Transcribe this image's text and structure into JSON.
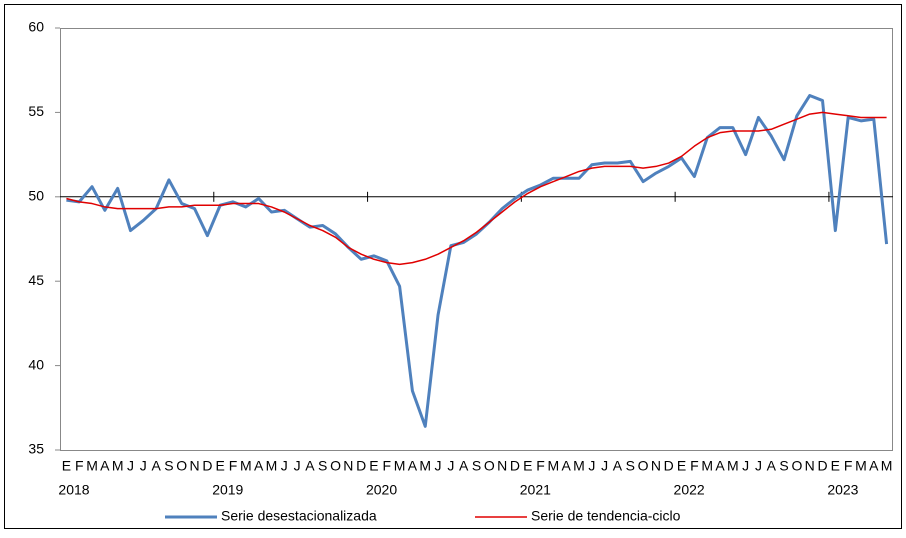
{
  "chart_data": {
    "type": "line",
    "categories": [
      "E",
      "F",
      "M",
      "A",
      "M",
      "J",
      "J",
      "A",
      "S",
      "O",
      "N",
      "D",
      "E",
      "F",
      "M",
      "A",
      "M",
      "J",
      "J",
      "A",
      "S",
      "O",
      "N",
      "D",
      "E",
      "F",
      "M",
      "A",
      "M",
      "J",
      "J",
      "A",
      "S",
      "O",
      "N",
      "D",
      "E",
      "F",
      "M",
      "A",
      "M",
      "J",
      "J",
      "A",
      "S",
      "O",
      "N",
      "D",
      "E",
      "F",
      "M",
      "A",
      "M",
      "J",
      "J",
      "A",
      "S",
      "O",
      "N",
      "D",
      "E",
      "F",
      "M",
      "A",
      "M"
    ],
    "years": [
      "2018",
      "2019",
      "2020",
      "2021",
      "2022",
      "2023"
    ],
    "series": [
      {
        "name": "Serie desestacionalizada",
        "color": "#4f81bd",
        "width": 3,
        "values": [
          49.8,
          49.7,
          50.6,
          49.2,
          50.5,
          48.0,
          48.6,
          49.3,
          51.0,
          49.6,
          49.3,
          47.7,
          49.5,
          49.7,
          49.4,
          49.9,
          49.1,
          49.2,
          48.7,
          48.2,
          48.3,
          47.8,
          47.0,
          46.3,
          46.5,
          46.2,
          44.7,
          38.5,
          36.4,
          43.0,
          47.1,
          47.3,
          47.8,
          48.5,
          49.3,
          49.9,
          50.4,
          50.7,
          51.1,
          51.1,
          51.1,
          51.9,
          52.0,
          52.0,
          52.1,
          50.9,
          51.4,
          51.8,
          52.3,
          51.2,
          53.5,
          54.1,
          54.1,
          52.5,
          54.7,
          53.6,
          52.2,
          54.8,
          56.0,
          55.7,
          48.0,
          54.7,
          54.5,
          54.6,
          47.2
        ]
      },
      {
        "name": "Serie de tendencia-ciclo",
        "color": "#e00000",
        "width": 1.5,
        "values": [
          49.9,
          49.7,
          49.6,
          49.4,
          49.3,
          49.3,
          49.3,
          49.3,
          49.4,
          49.4,
          49.5,
          49.5,
          49.5,
          49.6,
          49.6,
          49.6,
          49.4,
          49.1,
          48.7,
          48.3,
          48.0,
          47.6,
          47.0,
          46.6,
          46.3,
          46.1,
          46.0,
          46.1,
          46.3,
          46.6,
          47.0,
          47.4,
          47.9,
          48.5,
          49.1,
          49.7,
          50.2,
          50.6,
          50.9,
          51.2,
          51.5,
          51.7,
          51.8,
          51.8,
          51.8,
          51.7,
          51.8,
          52.0,
          52.4,
          53.0,
          53.5,
          53.8,
          53.9,
          53.9,
          53.9,
          54.0,
          54.3,
          54.6,
          54.9,
          55.0,
          54.9,
          54.8,
          54.7,
          54.7,
          54.7
        ]
      }
    ],
    "ylim": [
      35,
      60
    ],
    "yticks": [
      35,
      40,
      45,
      50,
      55,
      60
    ],
    "x_axis_crosses": 50,
    "grid": false,
    "legend": "bottom"
  }
}
